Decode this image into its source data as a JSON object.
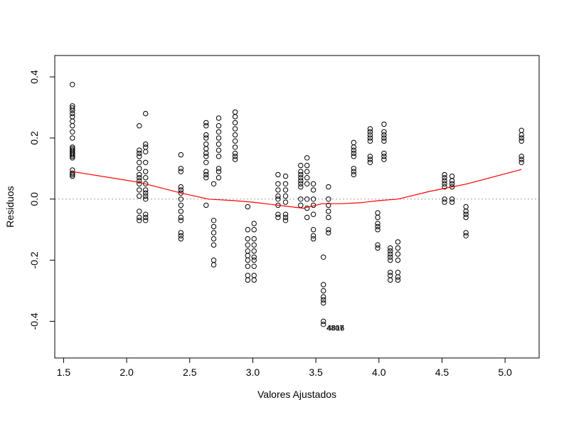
{
  "chart_data": {
    "type": "scatter",
    "title": "",
    "xlabel": "Valores Ajustados",
    "ylabel": "Residuos",
    "xlim": [
      1.43,
      5.27
    ],
    "ylim": [
      -0.52,
      0.47
    ],
    "xticks": [
      "1.5",
      "2.0",
      "2.5",
      "3.0",
      "3.5",
      "4.0",
      "4.5",
      "5.0"
    ],
    "yticks": [
      "-0.4",
      "-0.2",
      "0.0",
      "0.2",
      "0.4"
    ],
    "grid": false,
    "reference_line": {
      "y": 0.0,
      "style": "dotted",
      "color": "#a0a0a0"
    },
    "point_style": {
      "marker": "open-circle",
      "color": "#000000"
    },
    "outlier_labels": [
      "4807",
      "4816"
    ],
    "smooth": {
      "color": "#ff0000",
      "x": [
        1.57,
        2.1,
        2.43,
        2.65,
        2.85,
        3.0,
        3.2,
        3.4,
        3.55,
        3.7,
        3.85,
        4.0,
        4.15,
        4.4,
        4.7,
        5.13
      ],
      "y": [
        0.09,
        0.055,
        0.02,
        0.0,
        -0.005,
        -0.01,
        -0.02,
        -0.03,
        -0.015,
        -0.015,
        -0.012,
        -0.005,
        0.0,
        0.025,
        0.05,
        0.097
      ]
    },
    "series": [
      {
        "points": [
          [
            1.57,
            0.375
          ],
          [
            1.57,
            0.305
          ],
          [
            1.57,
            0.298
          ],
          [
            1.57,
            0.29
          ],
          [
            1.57,
            0.28
          ],
          [
            1.57,
            0.27
          ],
          [
            1.57,
            0.255
          ],
          [
            1.57,
            0.24
          ],
          [
            1.57,
            0.22
          ],
          [
            1.57,
            0.2
          ],
          [
            1.57,
            0.17
          ],
          [
            1.57,
            0.165
          ],
          [
            1.57,
            0.16
          ],
          [
            1.57,
            0.155
          ],
          [
            1.57,
            0.15
          ],
          [
            1.57,
            0.145
          ],
          [
            1.57,
            0.14
          ],
          [
            1.57,
            0.135
          ],
          [
            1.57,
            0.095
          ],
          [
            1.57,
            0.085
          ],
          [
            1.57,
            0.08
          ],
          [
            1.57,
            0.075
          ],
          [
            2.1,
            0.24
          ],
          [
            2.1,
            0.16
          ],
          [
            2.1,
            0.15
          ],
          [
            2.1,
            0.14
          ],
          [
            2.1,
            0.12
          ],
          [
            2.1,
            0.1
          ],
          [
            2.1,
            0.08
          ],
          [
            2.1,
            0.07
          ],
          [
            2.1,
            0.06
          ],
          [
            2.1,
            0.05
          ],
          [
            2.1,
            0.03
          ],
          [
            2.1,
            0.01
          ],
          [
            2.1,
            -0.04
          ],
          [
            2.1,
            -0.06
          ],
          [
            2.1,
            -0.07
          ],
          [
            2.15,
            0.28
          ],
          [
            2.15,
            0.18
          ],
          [
            2.15,
            0.17
          ],
          [
            2.15,
            0.155
          ],
          [
            2.15,
            0.12
          ],
          [
            2.15,
            0.09
          ],
          [
            2.15,
            0.07
          ],
          [
            2.15,
            0.05
          ],
          [
            2.15,
            0.03
          ],
          [
            2.15,
            0.02
          ],
          [
            2.15,
            0.01
          ],
          [
            2.15,
            0.0
          ],
          [
            2.15,
            -0.05
          ],
          [
            2.15,
            -0.06
          ],
          [
            2.15,
            -0.07
          ],
          [
            2.43,
            0.145
          ],
          [
            2.43,
            0.1
          ],
          [
            2.43,
            0.09
          ],
          [
            2.43,
            0.04
          ],
          [
            2.43,
            0.03
          ],
          [
            2.43,
            0.02
          ],
          [
            2.43,
            0.0
          ],
          [
            2.43,
            -0.02
          ],
          [
            2.43,
            -0.04
          ],
          [
            2.43,
            -0.06
          ],
          [
            2.43,
            -0.07
          ],
          [
            2.43,
            -0.11
          ],
          [
            2.43,
            -0.12
          ],
          [
            2.43,
            -0.13
          ],
          [
            2.63,
            0.25
          ],
          [
            2.63,
            0.24
          ],
          [
            2.63,
            0.21
          ],
          [
            2.63,
            0.2
          ],
          [
            2.63,
            0.18
          ],
          [
            2.63,
            0.165
          ],
          [
            2.63,
            0.15
          ],
          [
            2.63,
            0.14
          ],
          [
            2.63,
            0.12
          ],
          [
            2.63,
            0.09
          ],
          [
            2.63,
            0.08
          ],
          [
            2.63,
            0.07
          ],
          [
            2.63,
            -0.02
          ],
          [
            2.69,
            0.05
          ],
          [
            2.69,
            -0.07
          ],
          [
            2.69,
            -0.09
          ],
          [
            2.69,
            -0.11
          ],
          [
            2.69,
            -0.13
          ],
          [
            2.69,
            -0.15
          ],
          [
            2.69,
            -0.2
          ],
          [
            2.69,
            -0.215
          ],
          [
            2.73,
            0.265
          ],
          [
            2.73,
            0.24
          ],
          [
            2.73,
            0.22
          ],
          [
            2.73,
            0.2
          ],
          [
            2.73,
            0.18
          ],
          [
            2.73,
            0.16
          ],
          [
            2.73,
            0.14
          ],
          [
            2.73,
            0.1
          ],
          [
            2.73,
            0.09
          ],
          [
            2.73,
            0.07
          ],
          [
            2.86,
            0.285
          ],
          [
            2.86,
            0.27
          ],
          [
            2.86,
            0.25
          ],
          [
            2.86,
            0.23
          ],
          [
            2.86,
            0.21
          ],
          [
            2.86,
            0.19
          ],
          [
            2.86,
            0.17
          ],
          [
            2.86,
            0.15
          ],
          [
            2.86,
            0.14
          ],
          [
            2.86,
            0.13
          ],
          [
            2.96,
            -0.025
          ],
          [
            2.96,
            -0.1
          ],
          [
            2.96,
            -0.13
          ],
          [
            2.96,
            -0.15
          ],
          [
            2.96,
            -0.17
          ],
          [
            2.96,
            -0.185
          ],
          [
            2.96,
            -0.2
          ],
          [
            2.96,
            -0.22
          ],
          [
            2.96,
            -0.25
          ],
          [
            2.96,
            -0.265
          ],
          [
            3.01,
            -0.08
          ],
          [
            3.01,
            -0.1
          ],
          [
            3.01,
            -0.13
          ],
          [
            3.01,
            -0.15
          ],
          [
            3.01,
            -0.17
          ],
          [
            3.01,
            -0.19
          ],
          [
            3.01,
            -0.2
          ],
          [
            3.01,
            -0.22
          ],
          [
            3.01,
            -0.25
          ],
          [
            3.01,
            -0.265
          ],
          [
            3.2,
            0.08
          ],
          [
            3.2,
            0.05
          ],
          [
            3.2,
            0.03
          ],
          [
            3.2,
            0.01
          ],
          [
            3.2,
            0.0
          ],
          [
            3.2,
            -0.02
          ],
          [
            3.2,
            -0.05
          ],
          [
            3.2,
            -0.06
          ],
          [
            3.26,
            0.075
          ],
          [
            3.26,
            0.05
          ],
          [
            3.26,
            0.03
          ],
          [
            3.26,
            0.01
          ],
          [
            3.26,
            -0.01
          ],
          [
            3.26,
            -0.05
          ],
          [
            3.26,
            -0.06
          ],
          [
            3.26,
            -0.07
          ],
          [
            3.38,
            0.11
          ],
          [
            3.38,
            0.09
          ],
          [
            3.38,
            0.08
          ],
          [
            3.38,
            0.07
          ],
          [
            3.38,
            0.06
          ],
          [
            3.38,
            0.05
          ],
          [
            3.38,
            0.04
          ],
          [
            3.38,
            0.0
          ],
          [
            3.38,
            -0.02
          ],
          [
            3.43,
            0.135
          ],
          [
            3.43,
            0.11
          ],
          [
            3.43,
            0.09
          ],
          [
            3.43,
            0.07
          ],
          [
            3.43,
            0.05
          ],
          [
            3.43,
            0.0
          ],
          [
            3.43,
            -0.03
          ],
          [
            3.43,
            -0.06
          ],
          [
            3.48,
            0.05
          ],
          [
            3.48,
            0.03
          ],
          [
            3.48,
            0.0
          ],
          [
            3.48,
            -0.02
          ],
          [
            3.48,
            -0.05
          ],
          [
            3.48,
            -0.1
          ],
          [
            3.48,
            -0.12
          ],
          [
            3.48,
            -0.13
          ],
          [
            3.56,
            -0.19
          ],
          [
            3.56,
            -0.28
          ],
          [
            3.56,
            -0.3
          ],
          [
            3.56,
            -0.32
          ],
          [
            3.56,
            -0.33
          ],
          [
            3.56,
            -0.34
          ],
          [
            3.56,
            -0.4
          ],
          [
            3.56,
            -0.41
          ],
          [
            3.6,
            0.04
          ],
          [
            3.6,
            0.0
          ],
          [
            3.6,
            -0.02
          ],
          [
            3.6,
            -0.04
          ],
          [
            3.6,
            -0.06
          ],
          [
            3.6,
            -0.1
          ],
          [
            3.6,
            -0.11
          ],
          [
            3.8,
            0.185
          ],
          [
            3.8,
            0.17
          ],
          [
            3.8,
            0.16
          ],
          [
            3.8,
            0.15
          ],
          [
            3.8,
            0.14
          ],
          [
            3.8,
            0.1
          ],
          [
            3.8,
            0.09
          ],
          [
            3.8,
            0.08
          ],
          [
            3.93,
            0.23
          ],
          [
            3.93,
            0.22
          ],
          [
            3.93,
            0.21
          ],
          [
            3.93,
            0.2
          ],
          [
            3.93,
            0.19
          ],
          [
            3.93,
            0.14
          ],
          [
            3.93,
            0.13
          ],
          [
            3.93,
            0.12
          ],
          [
            3.99,
            -0.045
          ],
          [
            3.99,
            -0.06
          ],
          [
            3.99,
            -0.08
          ],
          [
            3.99,
            -0.09
          ],
          [
            3.99,
            -0.1
          ],
          [
            3.99,
            -0.15
          ],
          [
            3.99,
            -0.16
          ],
          [
            4.04,
            0.245
          ],
          [
            4.04,
            0.22
          ],
          [
            4.04,
            0.21
          ],
          [
            4.04,
            0.2
          ],
          [
            4.04,
            0.19
          ],
          [
            4.04,
            0.15
          ],
          [
            4.04,
            0.14
          ],
          [
            4.04,
            0.13
          ],
          [
            4.09,
            -0.16
          ],
          [
            4.09,
            -0.17
          ],
          [
            4.09,
            -0.18
          ],
          [
            4.09,
            -0.19
          ],
          [
            4.09,
            -0.2
          ],
          [
            4.09,
            -0.24
          ],
          [
            4.09,
            -0.25
          ],
          [
            4.09,
            -0.265
          ],
          [
            4.15,
            -0.14
          ],
          [
            4.15,
            -0.16
          ],
          [
            4.15,
            -0.18
          ],
          [
            4.15,
            -0.2
          ],
          [
            4.15,
            -0.24
          ],
          [
            4.15,
            -0.255
          ],
          [
            4.15,
            -0.265
          ],
          [
            4.52,
            0.08
          ],
          [
            4.52,
            0.07
          ],
          [
            4.52,
            0.06
          ],
          [
            4.52,
            0.05
          ],
          [
            4.52,
            0.04
          ],
          [
            4.52,
            0.0
          ],
          [
            4.52,
            -0.01
          ],
          [
            4.58,
            0.075
          ],
          [
            4.58,
            0.06
          ],
          [
            4.58,
            0.05
          ],
          [
            4.58,
            0.04
          ],
          [
            4.58,
            0.0
          ],
          [
            4.58,
            -0.01
          ],
          [
            4.69,
            -0.025
          ],
          [
            4.69,
            -0.04
          ],
          [
            4.69,
            -0.05
          ],
          [
            4.69,
            -0.06
          ],
          [
            4.69,
            -0.11
          ],
          [
            4.69,
            -0.12
          ],
          [
            5.13,
            0.225
          ],
          [
            5.13,
            0.21
          ],
          [
            5.13,
            0.2
          ],
          [
            5.13,
            0.19
          ],
          [
            5.13,
            0.14
          ],
          [
            5.13,
            0.13
          ],
          [
            5.13,
            0.12
          ]
        ]
      }
    ]
  }
}
